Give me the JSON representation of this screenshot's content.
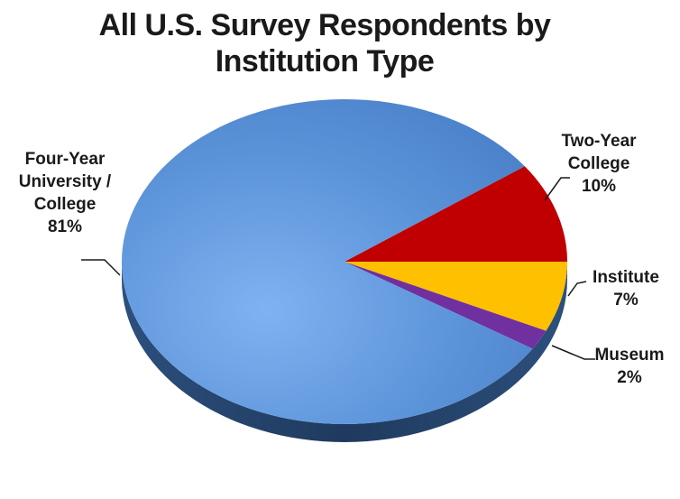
{
  "chart_data": {
    "type": "pie",
    "title_lines": [
      "All U.S. Survey Respondents by",
      "Institution Type"
    ],
    "slices": [
      {
        "label_lines": [
          "Four-Year",
          "University /",
          "College",
          "81%"
        ],
        "value": 81,
        "color": "#5b93d9"
      },
      {
        "label_lines": [
          "Two-Year",
          "College",
          "10%"
        ],
        "value": 10,
        "color": "#c00000"
      },
      {
        "label_lines": [
          "Institute",
          "7%"
        ],
        "value": 7,
        "color": "#ffc000"
      },
      {
        "label_lines": [
          "Museum",
          "2%"
        ],
        "value": 2,
        "color": "#7030a0"
      }
    ]
  }
}
